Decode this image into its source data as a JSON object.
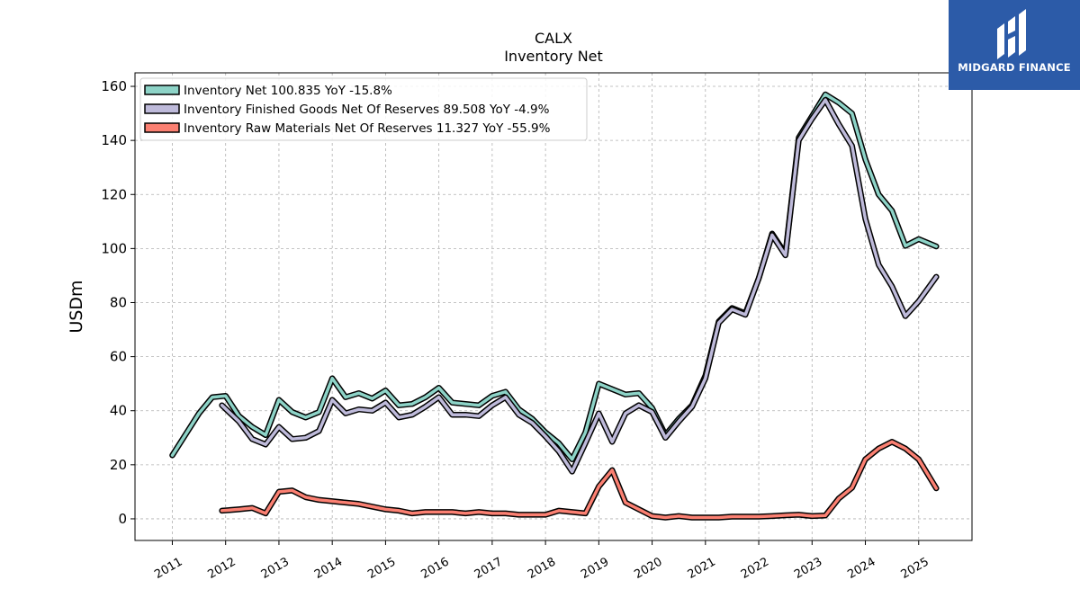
{
  "brand": {
    "name": "MIDGARD FINANCE",
    "background": "#2c5ba8"
  },
  "chart_data": {
    "type": "line",
    "title": "CALX",
    "subtitle": "Inventory Net",
    "ylabel": "USDm",
    "xlabel": "",
    "ylim": [
      -8,
      165
    ],
    "xlim": [
      2010.3,
      2026.0
    ],
    "yticks": [
      0,
      20,
      40,
      60,
      80,
      100,
      120,
      140,
      160
    ],
    "xticks": [
      "2011",
      "2012",
      "2013",
      "2014",
      "2015",
      "2016",
      "2017",
      "2018",
      "2019",
      "2020",
      "2021",
      "2022",
      "2023",
      "2024",
      "2025"
    ],
    "grid": true,
    "legend_position": "top-left",
    "series": [
      {
        "name": "Inventory Net  100.835 YoY -15.8%",
        "color": "#8dd3c7",
        "points": [
          [
            2011.0,
            23.5
          ],
          [
            2011.5,
            39
          ],
          [
            2011.75,
            45
          ],
          [
            2012.0,
            45.5
          ],
          [
            2012.25,
            38
          ],
          [
            2012.5,
            34
          ],
          [
            2012.75,
            31
          ],
          [
            2013.0,
            44
          ],
          [
            2013.25,
            39.5
          ],
          [
            2013.5,
            37.5
          ],
          [
            2013.75,
            39.5
          ],
          [
            2014.0,
            52
          ],
          [
            2014.25,
            45
          ],
          [
            2014.5,
            46.5
          ],
          [
            2014.75,
            44.5
          ],
          [
            2015.0,
            47.5
          ],
          [
            2015.25,
            42
          ],
          [
            2015.5,
            42.5
          ],
          [
            2015.75,
            45
          ],
          [
            2016.0,
            48.5
          ],
          [
            2016.25,
            43
          ],
          [
            2016.5,
            42.5
          ],
          [
            2016.75,
            42
          ],
          [
            2017.0,
            45.5
          ],
          [
            2017.25,
            47
          ],
          [
            2017.5,
            40.5
          ],
          [
            2017.75,
            37
          ],
          [
            2018.0,
            32
          ],
          [
            2018.25,
            28
          ],
          [
            2018.5,
            22
          ],
          [
            2018.75,
            32
          ],
          [
            2019.0,
            50
          ],
          [
            2019.25,
            48
          ],
          [
            2019.5,
            46
          ],
          [
            2019.75,
            46.5
          ],
          [
            2020.0,
            41
          ],
          [
            2020.25,
            31
          ],
          [
            2020.5,
            37
          ],
          [
            2020.75,
            42
          ],
          [
            2021.0,
            53
          ],
          [
            2021.25,
            73
          ],
          [
            2021.5,
            78
          ],
          [
            2021.75,
            76
          ],
          [
            2022.0,
            89
          ],
          [
            2022.25,
            105.5
          ],
          [
            2022.5,
            98
          ],
          [
            2022.75,
            141
          ],
          [
            2023.0,
            149
          ],
          [
            2023.25,
            157
          ],
          [
            2023.5,
            154
          ],
          [
            2023.75,
            150
          ],
          [
            2024.0,
            133
          ],
          [
            2024.25,
            120
          ],
          [
            2024.5,
            114
          ],
          [
            2024.75,
            101
          ],
          [
            2025.0,
            103.5
          ],
          [
            2025.33,
            100.8
          ]
        ]
      },
      {
        "name": "Inventory Finished Goods Net Of Reserves  89.508 YoY -4.9%",
        "color": "#bebada",
        "points": [
          [
            2011.93,
            42
          ],
          [
            2012.25,
            36
          ],
          [
            2012.5,
            29.5
          ],
          [
            2012.75,
            27.5
          ],
          [
            2013.0,
            34
          ],
          [
            2013.25,
            29.5
          ],
          [
            2013.5,
            30
          ],
          [
            2013.75,
            32.5
          ],
          [
            2014.0,
            44
          ],
          [
            2014.25,
            39
          ],
          [
            2014.5,
            40.5
          ],
          [
            2014.75,
            40
          ],
          [
            2015.0,
            43
          ],
          [
            2015.25,
            37.5
          ],
          [
            2015.5,
            38.5
          ],
          [
            2015.75,
            41.5
          ],
          [
            2016.0,
            45
          ],
          [
            2016.25,
            38.5
          ],
          [
            2016.5,
            38.5
          ],
          [
            2016.75,
            38
          ],
          [
            2017.0,
            42
          ],
          [
            2017.25,
            45
          ],
          [
            2017.5,
            38.5
          ],
          [
            2017.75,
            35.5
          ],
          [
            2018.0,
            30.5
          ],
          [
            2018.25,
            25
          ],
          [
            2018.5,
            17.5
          ],
          [
            2018.75,
            28
          ],
          [
            2019.0,
            39
          ],
          [
            2019.25,
            28.5
          ],
          [
            2019.5,
            39
          ],
          [
            2019.75,
            42
          ],
          [
            2020.0,
            39.5
          ],
          [
            2020.25,
            30
          ],
          [
            2020.5,
            36
          ],
          [
            2020.75,
            41.5
          ],
          [
            2021.0,
            52
          ],
          [
            2021.25,
            72.5
          ],
          [
            2021.5,
            77.5
          ],
          [
            2021.75,
            75.5
          ],
          [
            2022.0,
            89
          ],
          [
            2022.25,
            105
          ],
          [
            2022.5,
            97.5
          ],
          [
            2022.75,
            140
          ],
          [
            2023.0,
            148
          ],
          [
            2023.25,
            155
          ],
          [
            2023.5,
            146
          ],
          [
            2023.75,
            138
          ],
          [
            2024.0,
            111
          ],
          [
            2024.25,
            94
          ],
          [
            2024.5,
            86
          ],
          [
            2024.75,
            75
          ],
          [
            2025.0,
            80.5
          ],
          [
            2025.33,
            89.5
          ]
        ]
      },
      {
        "name": "Inventory Raw Materials Net Of Reserves  11.327 YoY -55.9%",
        "color": "#fb8072",
        "points": [
          [
            2011.93,
            3
          ],
          [
            2012.25,
            3.5
          ],
          [
            2012.5,
            4
          ],
          [
            2012.75,
            2
          ],
          [
            2013.0,
            10
          ],
          [
            2013.25,
            10.5
          ],
          [
            2013.5,
            8
          ],
          [
            2013.75,
            7
          ],
          [
            2014.0,
            6.5
          ],
          [
            2014.25,
            6
          ],
          [
            2014.5,
            5.5
          ],
          [
            2014.75,
            4.5
          ],
          [
            2015.0,
            3.5
          ],
          [
            2015.25,
            3
          ],
          [
            2015.5,
            2
          ],
          [
            2015.75,
            2.5
          ],
          [
            2016.0,
            2.5
          ],
          [
            2016.25,
            2.5
          ],
          [
            2016.5,
            2
          ],
          [
            2016.75,
            2.5
          ],
          [
            2017.0,
            2
          ],
          [
            2017.25,
            2
          ],
          [
            2017.5,
            1.5
          ],
          [
            2017.75,
            1.5
          ],
          [
            2018.0,
            1.5
          ],
          [
            2018.25,
            3
          ],
          [
            2018.5,
            2.5
          ],
          [
            2018.75,
            2
          ],
          [
            2019.0,
            12
          ],
          [
            2019.25,
            18
          ],
          [
            2019.5,
            6
          ],
          [
            2019.75,
            3.5
          ],
          [
            2020.0,
            1
          ],
          [
            2020.25,
            0.5
          ],
          [
            2020.5,
            1
          ],
          [
            2020.75,
            0.5
          ],
          [
            2021.0,
            0.5
          ],
          [
            2021.25,
            0.5
          ],
          [
            2021.5,
            0.8
          ],
          [
            2021.75,
            0.8
          ],
          [
            2022.0,
            0.8
          ],
          [
            2022.25,
            1
          ],
          [
            2022.5,
            1.3
          ],
          [
            2022.75,
            1.5
          ],
          [
            2023.0,
            1
          ],
          [
            2023.25,
            1.2
          ],
          [
            2023.5,
            7.5
          ],
          [
            2023.75,
            11.5
          ],
          [
            2024.0,
            22
          ],
          [
            2024.25,
            26
          ],
          [
            2024.5,
            28.5
          ],
          [
            2024.75,
            26
          ],
          [
            2025.0,
            22
          ],
          [
            2025.33,
            11.3
          ]
        ]
      }
    ]
  }
}
